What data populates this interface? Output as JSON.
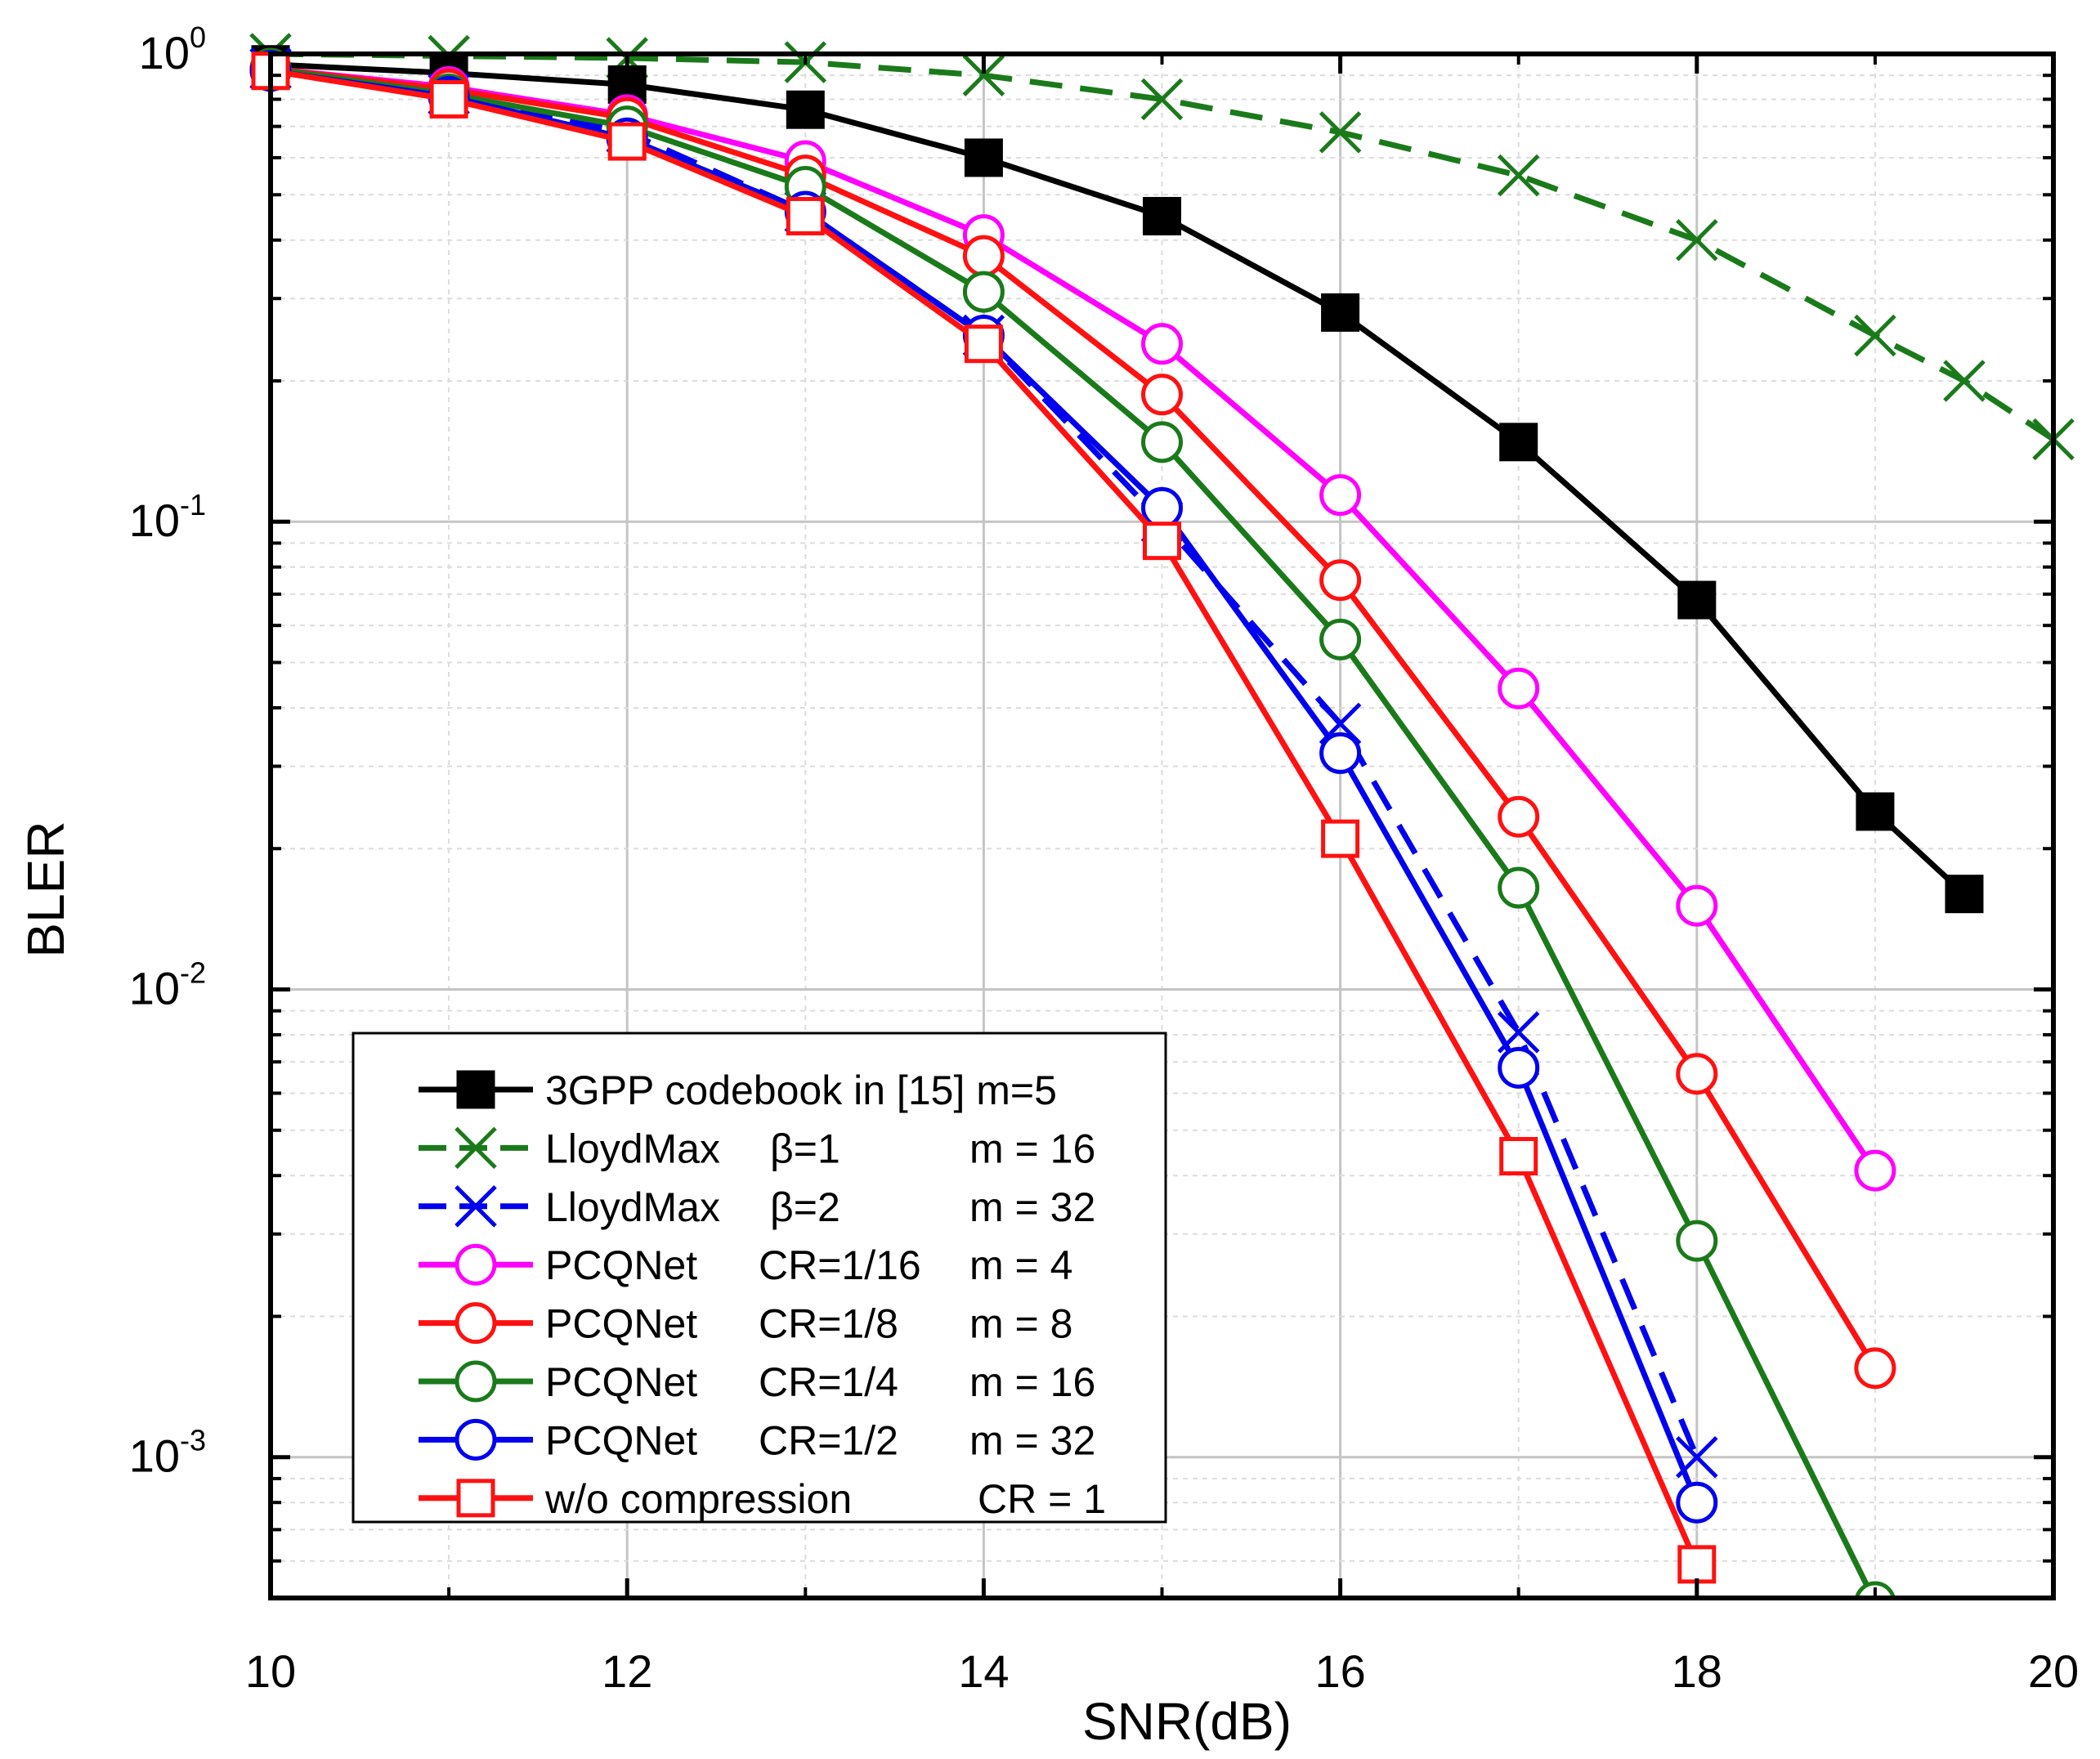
{
  "chart_data": {
    "type": "line",
    "title": "",
    "xlabel": "SNR(dB)",
    "ylabel": "BLER",
    "xlim": [
      10,
      20
    ],
    "ylim": [
      0.0005,
      1
    ],
    "yscale": "log",
    "grid": true,
    "x_ticks": [
      10,
      12,
      14,
      16,
      18,
      20
    ],
    "x_tick_labels": [
      "10",
      "12",
      "14",
      "16",
      "18",
      "20"
    ],
    "y_ticks": [
      {
        "value": 1,
        "base": "10",
        "exp": "0"
      },
      {
        "value": 0.1,
        "base": "10",
        "exp": "-1"
      },
      {
        "value": 0.01,
        "base": "10",
        "exp": "-2"
      },
      {
        "value": 0.001,
        "base": "10",
        "exp": "-3"
      }
    ],
    "legend_position": "bottom-left",
    "series": [
      {
        "name": "3GPP codebook in [15] m=5",
        "legend": {
          "a": "3GPP codebook in [15] m=5",
          "b": "",
          "c": ""
        },
        "color": "#000000",
        "dashed": false,
        "marker": "square",
        "filled": true,
        "x": [
          10,
          11,
          12,
          13,
          14,
          15,
          16,
          17,
          18,
          19,
          19.5
        ],
        "y": [
          0.95,
          0.91,
          0.86,
          0.76,
          0.6,
          0.45,
          0.28,
          0.148,
          0.068,
          0.024,
          0.016
        ]
      },
      {
        "name": "LloydMax β=1 m = 16",
        "legend": {
          "a": "LloydMax",
          "b": "β=1",
          "c": "m = 16"
        },
        "color": "#1a7a1a",
        "dashed": true,
        "marker": "x",
        "filled": false,
        "x": [
          10,
          11,
          12,
          13,
          14,
          15,
          16,
          17,
          18,
          19,
          19.5,
          20
        ],
        "y": [
          1.0,
          0.99,
          0.98,
          0.96,
          0.9,
          0.8,
          0.68,
          0.55,
          0.4,
          0.25,
          0.2,
          0.15
        ]
      },
      {
        "name": "LloydMax β=2 m = 32",
        "legend": {
          "a": "LloydMax",
          "b": "β=2",
          "c": "m = 32"
        },
        "color": "#0000ee",
        "dashed": true,
        "marker": "x",
        "filled": false,
        "x": [
          10,
          11,
          12,
          13,
          14,
          15,
          16,
          17,
          18
        ],
        "y": [
          0.93,
          0.82,
          0.68,
          0.46,
          0.25,
          0.1,
          0.037,
          0.0081,
          0.001
        ]
      },
      {
        "name": "PCQNet CR=1/16 m = 4",
        "legend": {
          "a": "PCQNet",
          "b": "CR=1/16",
          "c": "m = 4"
        },
        "color": "#ff00ff",
        "dashed": false,
        "marker": "circle",
        "filled": false,
        "x": [
          10,
          11,
          12,
          13,
          14,
          15,
          16,
          17,
          18,
          19
        ],
        "y": [
          0.93,
          0.85,
          0.74,
          0.59,
          0.41,
          0.24,
          0.114,
          0.044,
          0.0151,
          0.0041
        ]
      },
      {
        "name": "PCQNet CR=1/8 m = 8",
        "legend": {
          "a": "PCQNet",
          "b": "CR=1/8",
          "c": "m = 8"
        },
        "color": "#ff1111",
        "dashed": false,
        "marker": "circle",
        "filled": false,
        "x": [
          10,
          11,
          12,
          13,
          14,
          15,
          16,
          17,
          18,
          19
        ],
        "y": [
          0.93,
          0.84,
          0.73,
          0.55,
          0.37,
          0.187,
          0.075,
          0.0234,
          0.0066,
          0.00155
        ]
      },
      {
        "name": "PCQNet CR=1/4 m = 16",
        "legend": {
          "a": "PCQNet",
          "b": "CR=1/4",
          "c": "m = 16"
        },
        "color": "#1a7a1a",
        "dashed": false,
        "marker": "circle",
        "filled": false,
        "x": [
          10,
          11,
          12,
          13,
          14,
          15,
          16,
          17,
          18,
          19
        ],
        "y": [
          0.93,
          0.82,
          0.7,
          0.52,
          0.31,
          0.148,
          0.056,
          0.0165,
          0.0029,
          0.00049
        ]
      },
      {
        "name": "PCQNet CR=1/2 m = 32",
        "legend": {
          "a": "PCQNet",
          "b": "CR=1/2",
          "c": "m = 32"
        },
        "color": "#0000ee",
        "dashed": false,
        "marker": "circle",
        "filled": false,
        "x": [
          10,
          11,
          12,
          13,
          14,
          15,
          16,
          17,
          18
        ],
        "y": [
          0.92,
          0.81,
          0.66,
          0.46,
          0.25,
          0.107,
          0.032,
          0.0068,
          0.0008
        ]
      },
      {
        "name": "w/o compression CR = 1",
        "legend": {
          "a": "w/o compression",
          "b": "",
          "c": "CR = 1"
        },
        "color": "#ff1111",
        "dashed": false,
        "marker": "square",
        "filled": false,
        "x": [
          10,
          11,
          12,
          13,
          14,
          15,
          16,
          17,
          18
        ],
        "y": [
          0.92,
          0.8,
          0.65,
          0.45,
          0.24,
          0.091,
          0.021,
          0.0044,
          0.00059
        ]
      }
    ]
  }
}
